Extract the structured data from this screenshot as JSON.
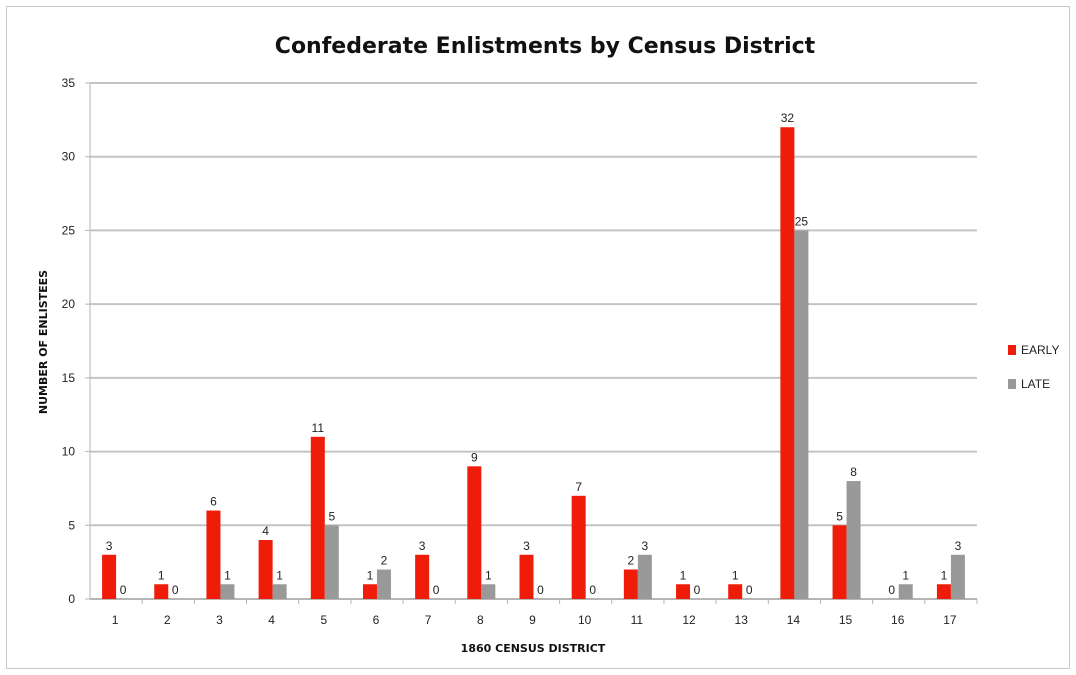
{
  "chart_data": {
    "type": "bar",
    "title": "Confederate Enlistments by Census District",
    "xlabel": "1860 CENSUS DISTRICT",
    "ylabel": "NUMBER OF ENLISTEES",
    "ylim": [
      0,
      35
    ],
    "yticks": [
      0,
      5,
      10,
      15,
      20,
      25,
      30,
      35
    ],
    "grid": true,
    "legend_position": "right",
    "categories": [
      "1",
      "2",
      "3",
      "4",
      "5",
      "6",
      "7",
      "8",
      "9",
      "10",
      "11",
      "12",
      "13",
      "14",
      "15",
      "16",
      "17"
    ],
    "series": [
      {
        "name": "EARLY",
        "color": "#ee1c09",
        "values": [
          3,
          1,
          6,
          4,
          11,
          1,
          3,
          9,
          3,
          7,
          2,
          1,
          1,
          32,
          5,
          0,
          1
        ]
      },
      {
        "name": "LATE",
        "color": "#999999",
        "values": [
          0,
          0,
          1,
          1,
          5,
          2,
          0,
          1,
          0,
          0,
          3,
          0,
          0,
          25,
          8,
          1,
          3
        ]
      }
    ]
  }
}
